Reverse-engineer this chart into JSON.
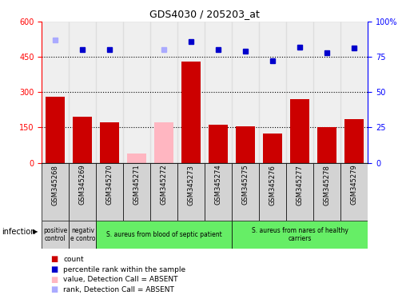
{
  "title": "GDS4030 / 205203_at",
  "samples": [
    "GSM345268",
    "GSM345269",
    "GSM345270",
    "GSM345271",
    "GSM345272",
    "GSM345273",
    "GSM345274",
    "GSM345275",
    "GSM345276",
    "GSM345277",
    "GSM345278",
    "GSM345279"
  ],
  "count": [
    280,
    195,
    170,
    null,
    null,
    430,
    160,
    155,
    125,
    270,
    150,
    185
  ],
  "count_absent": [
    null,
    null,
    null,
    40,
    170,
    null,
    null,
    null,
    null,
    null,
    null,
    null
  ],
  "percentile": [
    null,
    80,
    80,
    null,
    null,
    86,
    80,
    79,
    72,
    82,
    78,
    81
  ],
  "percentile_absent": [
    87,
    null,
    null,
    null,
    80,
    null,
    null,
    null,
    null,
    null,
    null,
    null
  ],
  "groups": [
    {
      "label": "positive\ncontrol",
      "start": 0,
      "end": 1,
      "color": "#d3d3d3"
    },
    {
      "label": "negativ\ne contro",
      "start": 1,
      "end": 2,
      "color": "#d3d3d3"
    },
    {
      "label": "S. aureus from blood of septic patient",
      "start": 2,
      "end": 7,
      "color": "#66ee66"
    },
    {
      "label": "S. aureus from nares of healthy\ncarriers",
      "start": 7,
      "end": 12,
      "color": "#66ee66"
    }
  ],
  "ylim_left": [
    0,
    600
  ],
  "ylim_right": [
    0,
    100
  ],
  "yticks_left": [
    0,
    150,
    300,
    450,
    600
  ],
  "ytick_labels_left": [
    "0",
    "150",
    "300",
    "450",
    "600"
  ],
  "yticks_right": [
    0,
    25,
    50,
    75,
    100
  ],
  "ytick_labels_right": [
    "0",
    "25",
    "50",
    "75",
    "100%"
  ],
  "hlines": [
    150,
    300,
    450
  ],
  "bar_color": "#cc0000",
  "bar_absent_color": "#ffb6c1",
  "dot_color": "#0000cc",
  "dot_absent_color": "#aaaaff",
  "col_bg_color": "#d3d3d3",
  "infection_label": "infection",
  "legend": [
    {
      "label": "count",
      "color": "#cc0000"
    },
    {
      "label": "percentile rank within the sample",
      "color": "#0000cc"
    },
    {
      "label": "value, Detection Call = ABSENT",
      "color": "#ffb6c1"
    },
    {
      "label": "rank, Detection Call = ABSENT",
      "color": "#aaaaff"
    }
  ]
}
